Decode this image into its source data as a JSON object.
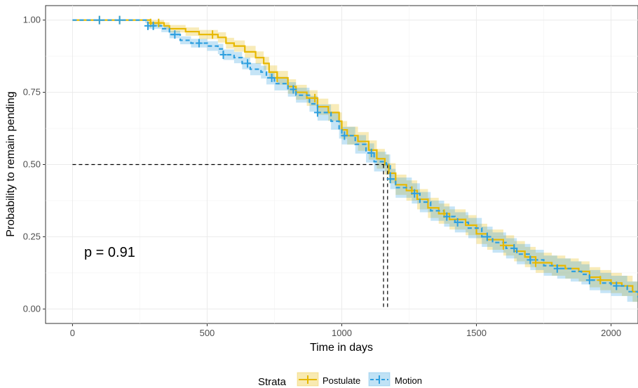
{
  "chart_data": {
    "type": "line",
    "subtype": "kaplan-meier step curves with confidence bands and censor marks",
    "xlabel": "Time in days",
    "ylabel": "Probability to remain pending",
    "xlim": [
      -100,
      2100
    ],
    "ylim": [
      -0.05,
      1.05
    ],
    "xticks": [
      0,
      500,
      1000,
      1500,
      2000
    ],
    "xtick_labels": [
      "0",
      "500",
      "1000",
      "1500",
      "2000"
    ],
    "yticks": [
      0,
      0.25,
      0.5,
      0.75,
      1
    ],
    "ytick_labels": [
      "0.00",
      "0.25",
      "0.50",
      "0.75",
      "1.00"
    ],
    "grid": true,
    "legend": {
      "title": "Strata",
      "position": "bottom"
    },
    "annotation": "p = 0.91",
    "median": {
      "y": 0.5,
      "x_values": [
        1155,
        1170
      ]
    },
    "series": [
      {
        "name": "Postulate",
        "color": "#E7B800",
        "line_style": "solid",
        "points": [
          [
            0,
            1.0
          ],
          [
            280,
            1.0
          ],
          [
            290,
            0.99
          ],
          [
            340,
            0.98
          ],
          [
            360,
            0.97
          ],
          [
            420,
            0.96
          ],
          [
            470,
            0.95
          ],
          [
            540,
            0.94
          ],
          [
            570,
            0.92
          ],
          [
            600,
            0.91
          ],
          [
            640,
            0.89
          ],
          [
            680,
            0.87
          ],
          [
            710,
            0.85
          ],
          [
            730,
            0.82
          ],
          [
            760,
            0.8
          ],
          [
            800,
            0.77
          ],
          [
            830,
            0.75
          ],
          [
            870,
            0.73
          ],
          [
            910,
            0.7
          ],
          [
            950,
            0.68
          ],
          [
            990,
            0.65
          ],
          [
            1000,
            0.62
          ],
          [
            1020,
            0.6
          ],
          [
            1060,
            0.58
          ],
          [
            1100,
            0.55
          ],
          [
            1130,
            0.52
          ],
          [
            1160,
            0.5
          ],
          [
            1175,
            0.47
          ],
          [
            1200,
            0.43
          ],
          [
            1240,
            0.41
          ],
          [
            1280,
            0.38
          ],
          [
            1320,
            0.35
          ],
          [
            1360,
            0.33
          ],
          [
            1400,
            0.31
          ],
          [
            1460,
            0.29
          ],
          [
            1500,
            0.26
          ],
          [
            1540,
            0.24
          ],
          [
            1600,
            0.22
          ],
          [
            1640,
            0.2
          ],
          [
            1680,
            0.18
          ],
          [
            1720,
            0.16
          ],
          [
            1780,
            0.15
          ],
          [
            1830,
            0.14
          ],
          [
            1880,
            0.13
          ],
          [
            1920,
            0.11
          ],
          [
            1960,
            0.1
          ],
          [
            2000,
            0.09
          ],
          [
            2040,
            0.08
          ],
          [
            2080,
            0.06
          ],
          [
            2100,
            0.05
          ]
        ],
        "censor_x": [
          100,
          175,
          290,
          320,
          520,
          760,
          900,
          1260,
          1380,
          1600,
          1720,
          1960
        ]
      },
      {
        "name": "Motion",
        "color": "#2E9FDF",
        "line_style": "dashed",
        "points": [
          [
            0,
            1.0
          ],
          [
            270,
            1.0
          ],
          [
            280,
            0.98
          ],
          [
            330,
            0.97
          ],
          [
            360,
            0.95
          ],
          [
            400,
            0.93
          ],
          [
            440,
            0.92
          ],
          [
            500,
            0.91
          ],
          [
            540,
            0.9
          ],
          [
            560,
            0.88
          ],
          [
            600,
            0.87
          ],
          [
            630,
            0.85
          ],
          [
            660,
            0.83
          ],
          [
            700,
            0.82
          ],
          [
            720,
            0.8
          ],
          [
            750,
            0.78
          ],
          [
            800,
            0.76
          ],
          [
            830,
            0.74
          ],
          [
            880,
            0.71
          ],
          [
            910,
            0.68
          ],
          [
            960,
            0.65
          ],
          [
            990,
            0.62
          ],
          [
            1000,
            0.6
          ],
          [
            1050,
            0.57
          ],
          [
            1090,
            0.54
          ],
          [
            1120,
            0.51
          ],
          [
            1165,
            0.5
          ],
          [
            1180,
            0.45
          ],
          [
            1200,
            0.42
          ],
          [
            1260,
            0.4
          ],
          [
            1290,
            0.37
          ],
          [
            1330,
            0.34
          ],
          [
            1380,
            0.32
          ],
          [
            1420,
            0.3
          ],
          [
            1470,
            0.28
          ],
          [
            1520,
            0.25
          ],
          [
            1560,
            0.23
          ],
          [
            1610,
            0.21
          ],
          [
            1650,
            0.19
          ],
          [
            1700,
            0.17
          ],
          [
            1750,
            0.15
          ],
          [
            1800,
            0.14
          ],
          [
            1850,
            0.13
          ],
          [
            1890,
            0.12
          ],
          [
            1920,
            0.1
          ],
          [
            1960,
            0.09
          ],
          [
            2000,
            0.08
          ],
          [
            2060,
            0.06
          ],
          [
            2100,
            0.04
          ]
        ],
        "censor_x": [
          100,
          175,
          280,
          300,
          380,
          470,
          560,
          650,
          740,
          820,
          910,
          1010,
          1110,
          1180,
          1270,
          1390,
          1430,
          1540,
          1640,
          1700,
          1800,
          1920,
          2020
        ]
      }
    ]
  }
}
